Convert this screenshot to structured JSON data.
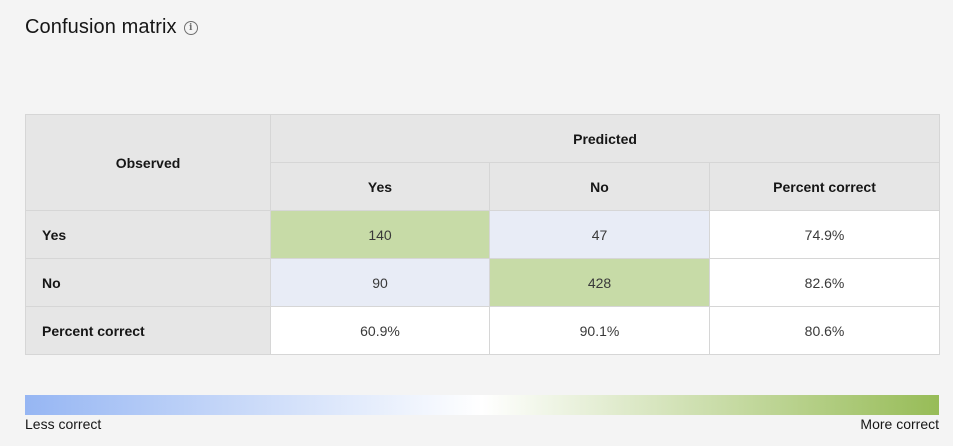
{
  "header": {
    "title": "Confusion matrix",
    "info_icon": "info-circle-icon"
  },
  "matrix": {
    "observed_label": "Observed",
    "predicted_label": "Predicted",
    "columns": [
      "Yes",
      "No",
      "Percent correct"
    ],
    "rows": [
      {
        "label": "Yes",
        "cells": [
          "140",
          "47",
          "74.9%"
        ]
      },
      {
        "label": "No",
        "cells": [
          "90",
          "428",
          "82.6%"
        ]
      },
      {
        "label": "Percent correct",
        "cells": [
          "60.9%",
          "90.1%",
          "80.6%"
        ]
      }
    ]
  },
  "legend": {
    "low_label": "Less correct",
    "high_label": "More correct",
    "low_color": "#96b6f3",
    "mid_color": "#ffffff",
    "high_color": "#97bc57"
  },
  "colors": {
    "high_cell": "#c7dba7",
    "low_cell": "#e8ecf6",
    "neutral_cell": "#ffffff",
    "header_bg": "#e6e6e6"
  }
}
